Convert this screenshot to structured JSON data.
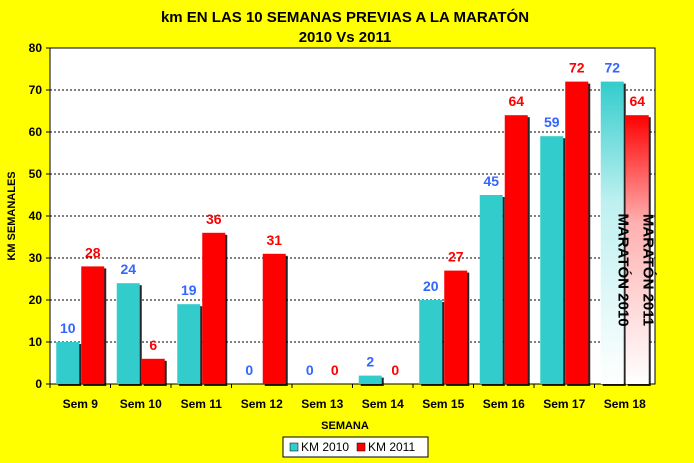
{
  "chart_data": {
    "type": "bar",
    "title": "km EN LAS 10 SEMANAS PREVIAS A LA MARATÓN",
    "subtitle": "2010 Vs 2011",
    "xlabel": "SEMANA",
    "ylabel": "KM SEMANALES",
    "ylim": [
      0,
      80
    ],
    "yticks": [
      0,
      10,
      20,
      30,
      40,
      50,
      60,
      70,
      80
    ],
    "grid": true,
    "legend_position": "bottom",
    "categories": [
      "Sem 9",
      "Sem 10",
      "Sem 11",
      "Sem 12",
      "Sem 13",
      "Sem 14",
      "Sem 15",
      "Sem 16",
      "Sem 17",
      "Sem 18"
    ],
    "series": [
      {
        "name": "KM 2010",
        "color": "#33cccc",
        "label_color": "#3366ff",
        "values": [
          10,
          24,
          19,
          0,
          0,
          2,
          20,
          45,
          59,
          72
        ]
      },
      {
        "name": "KM 2011",
        "color": "#ff0000",
        "label_color": "#ff0000",
        "values": [
          28,
          6,
          36,
          31,
          0,
          0,
          27,
          64,
          72,
          64
        ]
      }
    ],
    "annotations": [
      "MARATÓN 2010",
      "MARATÓN 2011"
    ]
  }
}
